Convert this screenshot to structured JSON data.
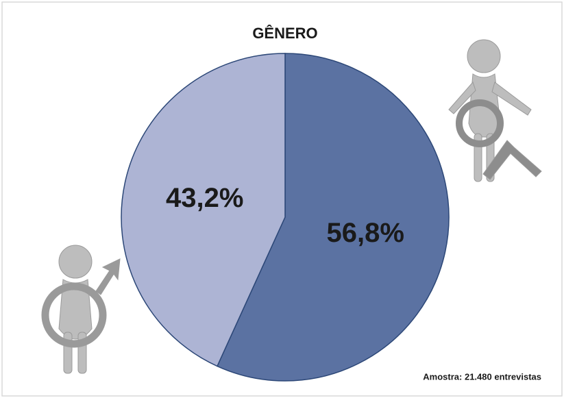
{
  "chart_data": {
    "type": "pie",
    "title": "GÊNERO",
    "values": [
      56.8,
      43.2
    ],
    "value_labels": [
      "56,8%",
      "43,2%"
    ],
    "colors": [
      "#5b72a2",
      "#adb4d4"
    ],
    "annotation": "Amostra: 21.480  entrevistas"
  }
}
